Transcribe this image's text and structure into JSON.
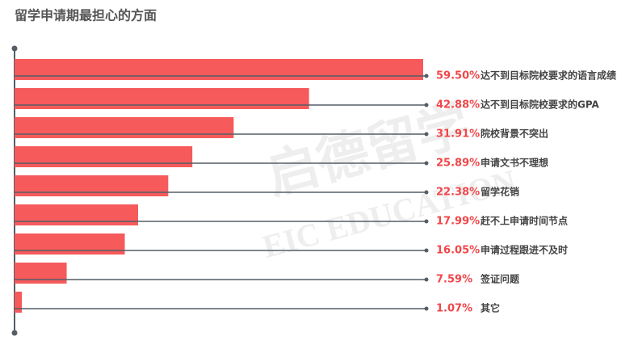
{
  "chart_data": {
    "type": "hbar",
    "title": "留学申请期最担心的方面",
    "categories": [
      "达不到目标院校要求的语言成绩",
      "达不到目标院校要求的GPA",
      "院校背景不突出",
      "申请文书不理想",
      "留学花销",
      "赶不上申请时间节点",
      "申请过程跟进不及时",
      "签证问题",
      "其它"
    ],
    "values": [
      59.5,
      42.88,
      31.91,
      25.89,
      22.38,
      17.99,
      16.05,
      7.59,
      1.07
    ],
    "value_labels": [
      "59.50%",
      "42.88%",
      "31.91%",
      "25.89%",
      "22.38%",
      "17.99%",
      "16.05%",
      "7.59%",
      "1.07%"
    ],
    "color": "#f65a5b",
    "watermark": [
      "启德留学",
      "EIC EDUCATION"
    ]
  }
}
